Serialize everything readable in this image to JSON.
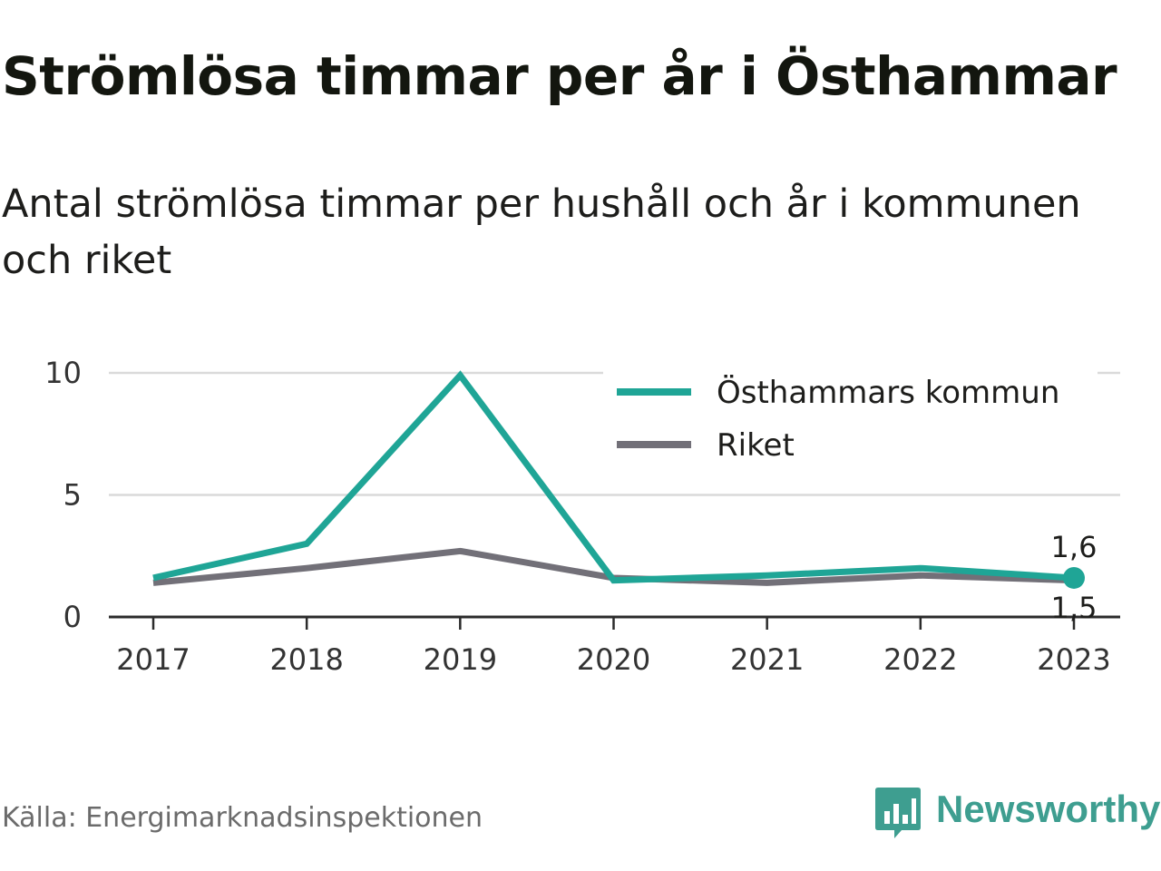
{
  "title": "Strömlösa timmar per år i Östhammar",
  "subtitle": "Antal strömlösa timmar per hushåll och år i kommunen och riket",
  "source": "Källa: Energimarknadsinspektionen",
  "brand": {
    "name": "Newsworthy",
    "icon": "bar-chart-speech-bubble-icon",
    "color": "#3e9e90"
  },
  "chart_data": {
    "type": "line",
    "x": [
      2017,
      2018,
      2019,
      2020,
      2021,
      2022,
      2023
    ],
    "yticks": [
      0,
      5,
      10
    ],
    "ylim": [
      0,
      10
    ],
    "grid": true,
    "legend": "top-right",
    "series": [
      {
        "name": "Östhammars kommun",
        "color": "#1fa596",
        "values": [
          1.6,
          3.0,
          9.9,
          1.5,
          1.7,
          2.0,
          1.6
        ],
        "end_label": "1,6"
      },
      {
        "name": "Riket",
        "color": "#727078",
        "values": [
          1.4,
          2.0,
          2.7,
          1.6,
          1.4,
          1.7,
          1.5
        ],
        "end_label": "1,5"
      }
    ]
  }
}
